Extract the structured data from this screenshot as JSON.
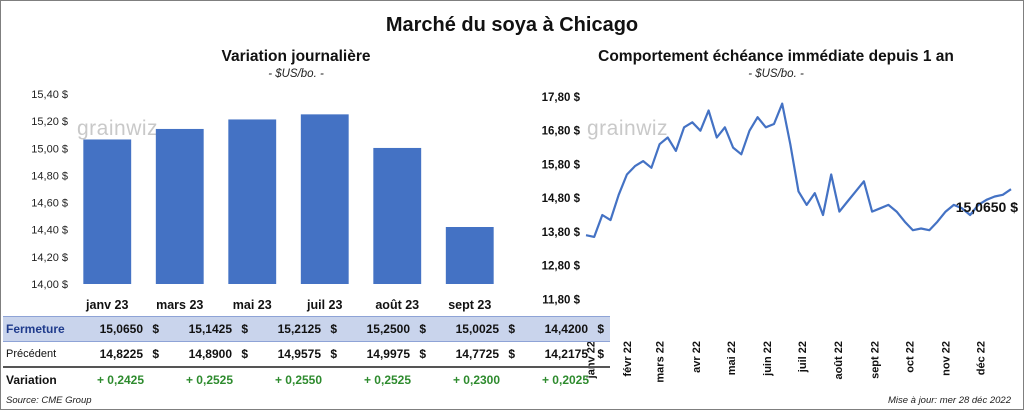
{
  "title": "Marché du soya à Chicago",
  "source": "Source: CME Group",
  "updated": "Mise à jour: mer 28 déc 2022",
  "watermark": "grainwiz",
  "colors": {
    "bar": "#4472c4",
    "line": "#4472c4",
    "positive": "#2e8b2e",
    "table_highlight": "#c9d4ec"
  },
  "chart_data": [
    {
      "type": "bar",
      "title": "Variation  journalière",
      "unit": "- $US/bo. -",
      "categories": [
        "janv 23",
        "mars 23",
        "mai 23",
        "juil 23",
        "août 23",
        "sept 23"
      ],
      "series": [
        {
          "name": "Fermeture",
          "values": [
            15.065,
            15.1425,
            15.2125,
            15.25,
            15.0025,
            14.42
          ]
        },
        {
          "name": "Précédent",
          "values": [
            14.8225,
            14.89,
            14.9575,
            14.9975,
            14.7725,
            14.2175
          ]
        }
      ],
      "ylim": [
        14.0,
        15.4
      ],
      "yticks": [
        "14,00 $",
        "14,20 $",
        "14,40 $",
        "14,60 $",
        "14,80 $",
        "15,00 $",
        "15,20 $",
        "15,40 $"
      ],
      "table": {
        "rows": [
          {
            "label": "Fermeture",
            "values": [
              "15,0650",
              "15,1425",
              "15,2125",
              "15,2500",
              "15,0025",
              "14,4200"
            ],
            "currency": "$"
          },
          {
            "label": "Précédent",
            "values": [
              "14,8225",
              "14,8900",
              "14,9575",
              "14,9975",
              "14,7725",
              "14,2175"
            ],
            "currency": "$"
          },
          {
            "label": "Variation",
            "values": [
              "+ 0,2425",
              "+ 0,2525",
              "+ 0,2550",
              "+ 0,2525",
              "+ 0,2300",
              "+ 0,2025"
            ]
          }
        ]
      }
    },
    {
      "type": "line",
      "title": "Comportement  échéance immédiate depuis 1 an",
      "unit": "- $US/bo. -",
      "ylim": [
        10.8,
        17.8
      ],
      "yticks": [
        "10,80 $",
        "11,80 $",
        "12,80 $",
        "13,80 $",
        "14,80 $",
        "15,80 $",
        "16,80 $",
        "17,80 $"
      ],
      "xticks": [
        "janv 22",
        "févr 22",
        "mars 22",
        "avr 22",
        "mai 22",
        "juin 22",
        "juil 22",
        "août 22",
        "sept 22",
        "oct 22",
        "nov 22",
        "déc 22"
      ],
      "last_label": "15,0650 $",
      "x": [
        "2021-12-28",
        "2022-01-04",
        "2022-01-11",
        "2022-01-18",
        "2022-01-25",
        "2022-02-01",
        "2022-02-08",
        "2022-02-15",
        "2022-02-22",
        "2022-03-01",
        "2022-03-08",
        "2022-03-15",
        "2022-03-22",
        "2022-03-29",
        "2022-04-05",
        "2022-04-12",
        "2022-04-19",
        "2022-04-26",
        "2022-05-03",
        "2022-05-10",
        "2022-05-17",
        "2022-05-24",
        "2022-05-31",
        "2022-06-07",
        "2022-06-14",
        "2022-06-21",
        "2022-06-28",
        "2022-07-05",
        "2022-07-12",
        "2022-07-19",
        "2022-07-26",
        "2022-08-02",
        "2022-08-09",
        "2022-08-16",
        "2022-08-23",
        "2022-08-30",
        "2022-09-06",
        "2022-09-13",
        "2022-09-20",
        "2022-09-27",
        "2022-10-04",
        "2022-10-11",
        "2022-10-18",
        "2022-10-25",
        "2022-11-01",
        "2022-11-08",
        "2022-11-15",
        "2022-11-22",
        "2022-11-29",
        "2022-12-06",
        "2022-12-13",
        "2022-12-20",
        "2022-12-27"
      ],
      "values": [
        13.7,
        13.65,
        14.3,
        14.15,
        14.9,
        15.5,
        15.75,
        15.9,
        15.7,
        16.4,
        16.6,
        16.2,
        16.9,
        17.05,
        16.8,
        17.4,
        16.6,
        16.9,
        16.3,
        16.1,
        16.8,
        17.2,
        16.9,
        17.0,
        17.6,
        16.4,
        15.0,
        14.6,
        14.95,
        14.3,
        15.5,
        14.4,
        14.7,
        15.0,
        15.3,
        14.4,
        14.5,
        14.6,
        14.4,
        14.1,
        13.85,
        13.9,
        13.85,
        14.1,
        14.4,
        14.6,
        14.5,
        14.3,
        14.6,
        14.75,
        14.85,
        14.9,
        15.065
      ]
    }
  ]
}
